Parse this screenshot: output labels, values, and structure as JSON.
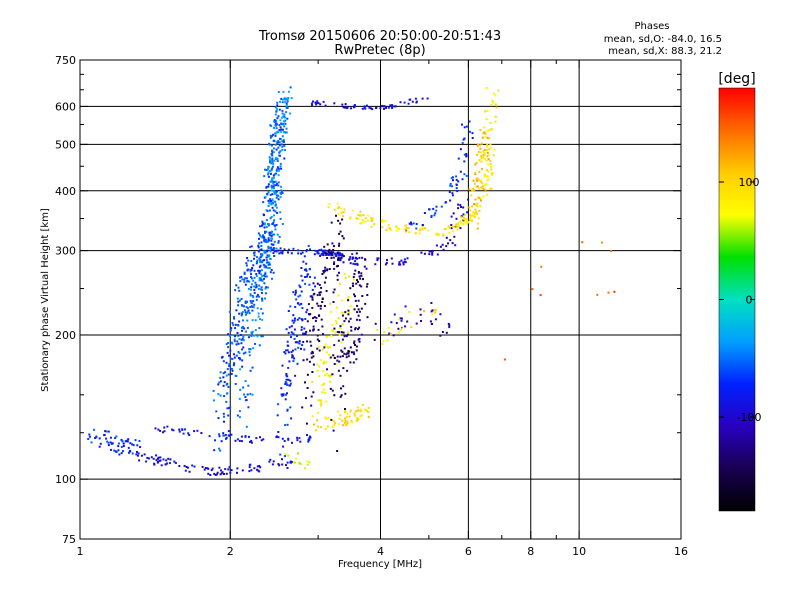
{
  "chart_data": {
    "type": "scatter",
    "title": "Tromsø 20150606 20:50:00-20:51:43",
    "subtitle": "RwPretec (8p)",
    "xlabel": "Frequency [MHz]",
    "ylabel": "Stationary phase Virtual Height [km]",
    "x_scale": "log",
    "y_scale": "log",
    "xlim": [
      1,
      16
    ],
    "ylim": [
      75,
      750
    ],
    "x_ticks": [
      1,
      2,
      4,
      6,
      8,
      10,
      16
    ],
    "x_minor_ticks": [
      3,
      5,
      7,
      9
    ],
    "y_ticks": [
      75,
      100,
      200,
      300,
      400,
      500,
      600,
      750
    ],
    "y_minor_ticks": [
      125,
      150,
      250,
      350,
      450,
      550,
      650,
      700
    ],
    "x_gridlines": [
      2,
      4,
      6,
      8,
      10
    ],
    "y_gridlines": [
      100,
      200,
      300,
      400,
      500,
      600
    ],
    "grid": true,
    "stats_header": "Phases",
    "stats_lines": [
      "mean, sd,O: -84.0, 16.5",
      "mean, sd,X:  88.3, 21.2"
    ],
    "colorbar": {
      "label": "[deg]",
      "range": [
        -180,
        180
      ],
      "ticks": [
        100,
        0,
        -100
      ],
      "colors": [
        "#ff0000",
        "#ff6a00",
        "#ffcc00",
        "#ffff00",
        "#00e000",
        "#00e0c0",
        "#00a0ff",
        "#0020ff",
        "#2800c0",
        "#180050",
        "#000000"
      ]
    },
    "series": [
      {
        "f": [
          1.05,
          1.2,
          1.3
        ],
        "h": [
          125,
          118,
          115
        ],
        "spread": 5,
        "phase": -70,
        "n": 60
      },
      {
        "f": [
          1.3,
          1.5,
          1.8,
          2.0,
          2.3
        ],
        "h": [
          112,
          108,
          104,
          104,
          106
        ],
        "spread": 2,
        "phase": -95,
        "n": 80
      },
      {
        "f": [
          1.4,
          1.8,
          2.2,
          2.6,
          2.9
        ],
        "h": [
          128,
          124,
          121,
          121,
          122
        ],
        "spread": 2,
        "phase": -85,
        "n": 60
      },
      {
        "f": [
          2.4,
          2.6,
          2.8
        ],
        "h": [
          110,
          107,
          106
        ],
        "spread": 2,
        "phase": -95,
        "n": 15
      },
      {
        "f": [
          2.6,
          2.75,
          2.9
        ],
        "h": [
          113,
          109,
          106
        ],
        "spread": 2,
        "phase": 75,
        "n": 12
      },
      {
        "f": [
          1.9,
          2.1,
          2.3
        ],
        "h": [
          130,
          220,
          300
        ],
        "spread": 30,
        "phase": -60,
        "n": 200
      },
      {
        "f": [
          2.1,
          2.3,
          2.5
        ],
        "h": [
          150,
          250,
          380
        ],
        "spread": 35,
        "phase": -50,
        "n": 200
      },
      {
        "f": [
          2.3,
          2.45,
          2.55
        ],
        "h": [
          250,
          420,
          580
        ],
        "spread": 40,
        "phase": -55,
        "n": 220
      },
      {
        "f": [
          2.4,
          2.5,
          2.6
        ],
        "h": [
          400,
          550,
          640
        ],
        "spread": 40,
        "phase": -40,
        "n": 80
      },
      {
        "f": [
          2.5,
          2.7,
          2.9
        ],
        "h": [
          130,
          200,
          280
        ],
        "spread": 30,
        "phase": -75,
        "n": 140
      },
      {
        "f": [
          2.9,
          3.4,
          4.0,
          5.0
        ],
        "h": [
          610,
          600,
          595,
          625
        ],
        "spread": 6,
        "phase": -90,
        "n": 60
      },
      {
        "f": [
          2.4,
          3.0,
          3.5
        ],
        "h": [
          300,
          298,
          292
        ],
        "spread": 4,
        "phase": -80,
        "n": 70
      },
      {
        "f": [
          3.0,
          3.5,
          4.5,
          5.5,
          5.9
        ],
        "h": [
          295,
          285,
          285,
          310,
          380
        ],
        "spread": 5,
        "phase": -100,
        "n": 90
      },
      {
        "f": [
          4.5,
          5.5,
          5.9,
          6.0
        ],
        "h": [
          330,
          380,
          450,
          560
        ],
        "spread": 8,
        "phase": -70,
        "n": 60
      },
      {
        "f": [
          3.2,
          3.8,
          4.6,
          5.5,
          6.2
        ],
        "h": [
          370,
          345,
          330,
          330,
          360
        ],
        "spread": 8,
        "phase": 90,
        "n": 120
      },
      {
        "f": [
          6.1,
          6.3,
          6.5
        ],
        "h": [
          350,
          420,
          520
        ],
        "spread": 25,
        "phase": 110,
        "n": 70
      },
      {
        "f": [
          6.5,
          6.6,
          6.7
        ],
        "h": [
          400,
          500,
          640
        ],
        "spread": 40,
        "phase": 85,
        "n": 60
      },
      {
        "f": [
          3.0,
          3.2,
          3.5
        ],
        "h": [
          140,
          200,
          260
        ],
        "spread": 30,
        "phase": 85,
        "n": 80
      },
      {
        "f": [
          3.0,
          3.5,
          3.7
        ],
        "h": [
          130,
          135,
          140
        ],
        "spread": 5,
        "phase": 95,
        "n": 60
      },
      {
        "f": [
          2.8,
          3.0,
          3.3
        ],
        "h": [
          160,
          220,
          320
        ],
        "spread": 40,
        "phase": -140,
        "n": 120
      },
      {
        "f": [
          3.2,
          3.5,
          3.7
        ],
        "h": [
          150,
          200,
          260
        ],
        "spread": 40,
        "phase": -135,
        "n": 120
      },
      {
        "f": [
          3.7,
          4.3,
          4.8,
          5.5
        ],
        "h": [
          200,
          215,
          225,
          205
        ],
        "spread": 12,
        "phase": -110,
        "n": 35
      },
      {
        "f": [
          4.0,
          4.6,
          5.2
        ],
        "h": [
          200,
          215,
          225
        ],
        "spread": 10,
        "phase": 95,
        "n": 18
      },
      {
        "f": [
          7.0,
          10.0,
          12.5
        ],
        "h": [
          200,
          250,
          280
        ],
        "spread": 60,
        "phase": 150,
        "n": 10
      }
    ]
  }
}
